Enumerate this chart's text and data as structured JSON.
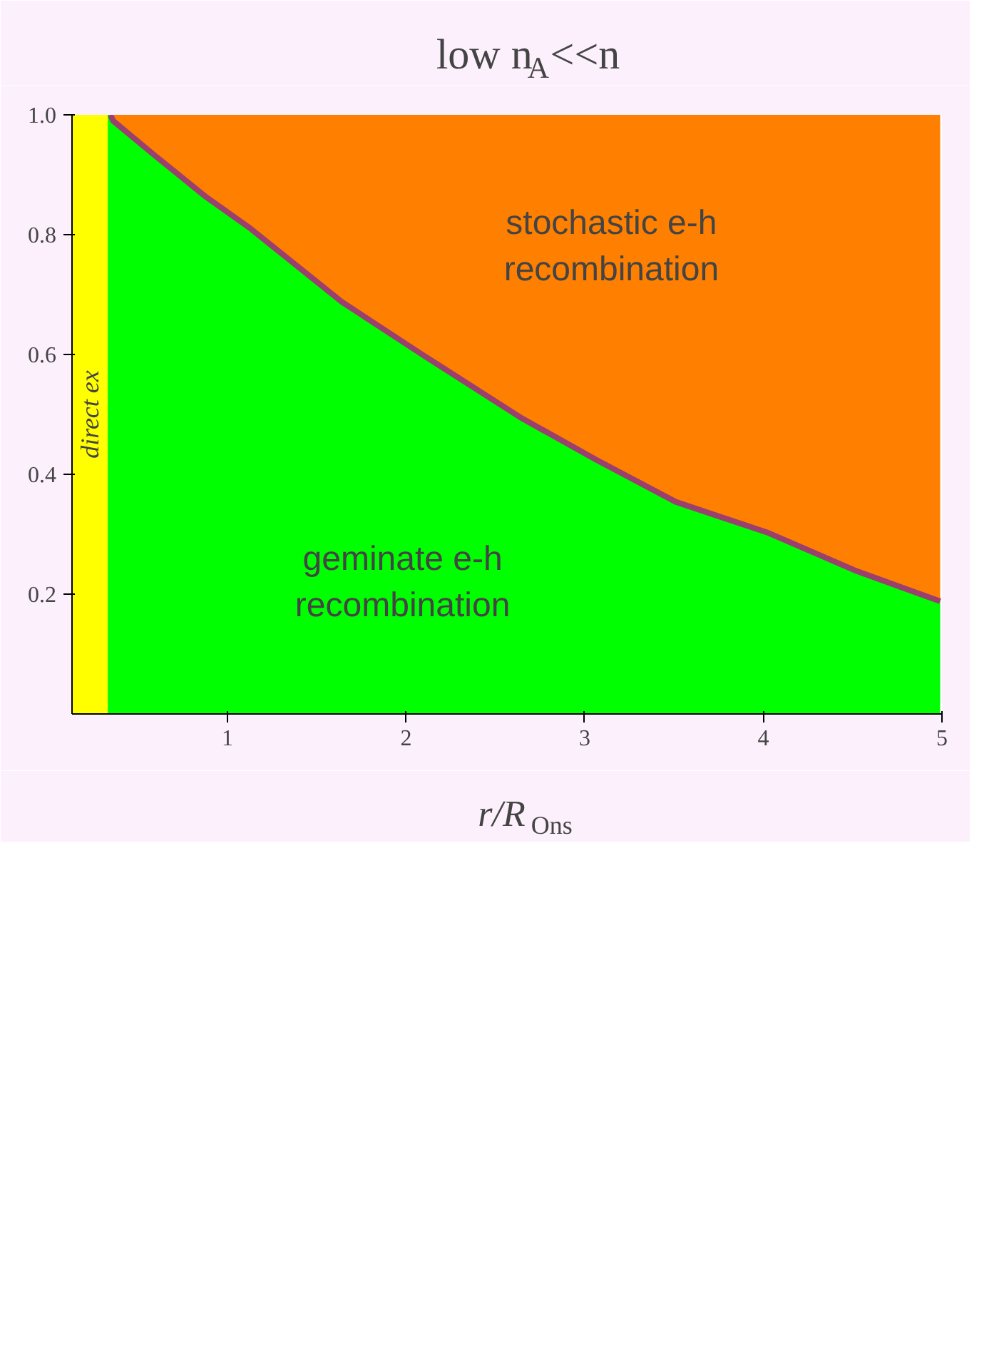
{
  "chart_data": {
    "type": "area",
    "title": "low n$_{A}$<<n",
    "xlabel": "r/R$_{Ons}$",
    "stacked": true,
    "x": [
      0.33,
      0.345,
      0.36,
      0.59,
      0.88,
      1.13,
      1.64,
      2.09,
      2.64,
      3.06,
      3.51,
      4.03,
      4.51,
      4.99
    ],
    "series": [
      {
        "color": "#00ff00",
        "values": [
          1.0,
          1.0,
          0.99,
          0.933,
          0.863,
          0.81,
          0.688,
          0.6,
          0.495,
          0.425,
          0.354,
          0.302,
          0.24,
          0.188
        ]
      },
      {
        "color": "#ff8000",
        "values": [
          0,
          0,
          0.01,
          0.067,
          0.137,
          0.19,
          0.312,
          0.4,
          0.505,
          0.575,
          0.646,
          0.698,
          0.76,
          0.812
        ]
      },
      {
        "type": "line",
        "color": "#9b3f6e",
        "x": [
          0.345,
          0.36,
          0.59,
          0.88,
          1.13,
          1.64,
          2.09,
          2.64,
          3.06,
          3.51,
          4.03,
          4.51,
          4.99
        ],
        "values": [
          1.0,
          0.99,
          0.933,
          0.863,
          0.81,
          0.688,
          0.6,
          0.495,
          0.425,
          0.354,
          0.302,
          0.24,
          0.188
        ]
      }
    ],
    "bands": [
      {
        "axis": "x",
        "from": 0.13,
        "to": 0.33,
        "label": "direct ex",
        "color": "#ffff00"
      }
    ],
    "annotations": [
      "stochastic e-h recombination",
      "geminate e-h recombination"
    ],
    "xlim": [
      0.13,
      5
    ],
    "xticks": [
      1,
      2,
      3,
      4,
      5
    ],
    "ylim": [
      0,
      1.0
    ],
    "yticks": [
      {
        "value": 0.2,
        "label": "0.2"
      },
      {
        "value": 0.4,
        "label": "0.4"
      },
      {
        "value": 0.6,
        "label": "0.6"
      },
      {
        "value": 0.8,
        "label": "0.8"
      },
      {
        "value": 1.0,
        "label": "1.0"
      }
    ],
    "grid": false
  }
}
